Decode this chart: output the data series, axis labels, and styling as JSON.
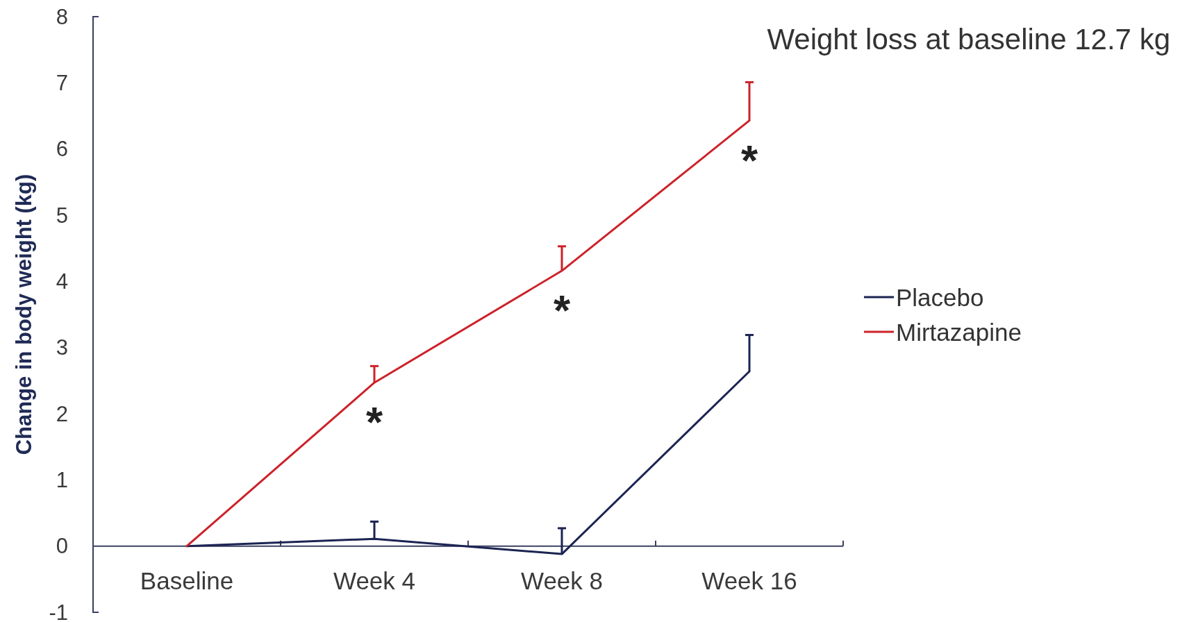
{
  "chart_data": {
    "type": "line",
    "ylabel": "Change in body weight (kg)",
    "categories": [
      "Baseline",
      "Week 4",
      "Week 8",
      "Week 16"
    ],
    "series": [
      {
        "name": "Placebo",
        "color": "#1b2452",
        "values": [
          0,
          0.11,
          -0.12,
          2.64
        ],
        "errors": [
          null,
          [
            0.11,
            0.37
          ],
          [
            -0.12,
            0.27
          ],
          [
            2.64,
            3.19
          ]
        ]
      },
      {
        "name": "Mirtazapine",
        "color": "#cc2229",
        "values": [
          0,
          2.47,
          4.16,
          6.43
        ],
        "errors": [
          null,
          [
            2.47,
            2.72
          ],
          [
            4.16,
            4.53
          ],
          [
            6.43,
            7.01
          ]
        ]
      }
    ],
    "ylim": [
      -1,
      8
    ],
    "yticks": [
      -1,
      0,
      1,
      2,
      3,
      4,
      5,
      6,
      7,
      8
    ],
    "legend": "right",
    "annotations": [
      "Weight loss at baseline 12.7 kg",
      {
        "text": "*",
        "x": "Week 4",
        "y": 2.47
      },
      {
        "text": "*",
        "x": "Week 8",
        "y": 4.16
      },
      {
        "text": "*",
        "x": "Week 16",
        "y": 6.43
      }
    ]
  }
}
